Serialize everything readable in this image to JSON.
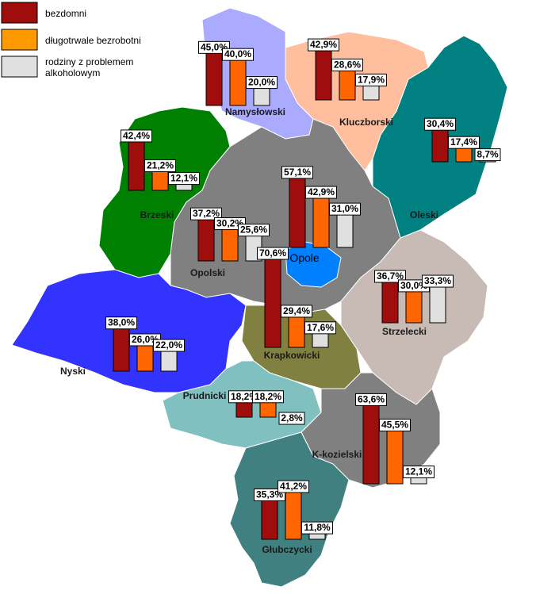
{
  "legend": [
    {
      "label": "bezdomni",
      "color": "#a00d0d"
    },
    {
      "label": "długotrwale bezrobotni",
      "color": "#ff6600"
    },
    {
      "label": "rodziny z problemem",
      "label2": "alkoholowym",
      "color": "#e0e0e0"
    }
  ],
  "city_label": "Opole",
  "chart_data": {
    "type": "bar",
    "series": [
      {
        "name": "bezdomni",
        "color": "#a00d0d"
      },
      {
        "name": "długotrwale bezrobotni",
        "color": "#ff6600"
      },
      {
        "name": "rodziny z problemem alkoholowym",
        "color": "#e0e0e0"
      }
    ],
    "regions": [
      {
        "name": "Namysłowski",
        "fill": "#aaaaff",
        "values": [
          45.0,
          40.0,
          20.0
        ],
        "labels": [
          "45,0%",
          "40,0%",
          "20,0%"
        ]
      },
      {
        "name": "Kluczborski",
        "fill": "#ffbf9f",
        "values": [
          42.9,
          28.6,
          17.9
        ],
        "labels": [
          "42,9%",
          "28,6%",
          "17,9%"
        ]
      },
      {
        "name": "Oleski",
        "fill": "#008080",
        "values": [
          30.4,
          17.4,
          8.7
        ],
        "labels": [
          "30,4%",
          "17,4%",
          "8,7%"
        ]
      },
      {
        "name": "Brzeski",
        "fill": "#008000",
        "values": [
          42.4,
          21.2,
          12.1
        ],
        "labels": [
          "42,4%",
          "21,2%",
          "12,1%"
        ]
      },
      {
        "name": "Opolski",
        "fill": "#808080",
        "values": [
          37.2,
          30.2,
          25.6
        ],
        "labels": [
          "37,2%",
          "30,2%",
          "25,6%"
        ]
      },
      {
        "name": "Opole",
        "fill": "#0080ff",
        "values": [
          57.1,
          42.9,
          31.0
        ],
        "labels": [
          "57,1%",
          "42,9%",
          "31,0%"
        ]
      },
      {
        "name": "Strzelecki",
        "fill": "#c8bab4",
        "values": [
          36.7,
          30.0,
          33.3
        ],
        "labels": [
          "36,7%",
          "30,0%",
          "33,3%"
        ]
      },
      {
        "name": "Krapkowicki",
        "fill": "#808040",
        "values": [
          70.6,
          29.4,
          17.6
        ],
        "labels": [
          "70,6%",
          "29,4%",
          "17,6%"
        ]
      },
      {
        "name": "Nyski",
        "fill": "#3333ff",
        "values": [
          38.0,
          26.0,
          22.0
        ],
        "labels": [
          "38,0%",
          "26,0%",
          "22,0%"
        ]
      },
      {
        "name": "Prudnicki",
        "fill": "#80c0c0",
        "values": [
          18.2,
          18.2,
          2.8
        ],
        "labels": [
          "18,2%",
          "18,2%",
          "2,8%"
        ]
      },
      {
        "name": "K-kozielski",
        "fill": "#808080",
        "values": [
          63.6,
          45.5,
          12.1
        ],
        "labels": [
          "63,6%",
          "45,5%",
          "12,1%"
        ]
      },
      {
        "name": "Głubczycki",
        "fill": "#408080",
        "values": [
          35.3,
          41.2,
          11.8
        ],
        "labels": [
          "35,3%",
          "41,2%",
          "11,8%"
        ]
      }
    ]
  }
}
